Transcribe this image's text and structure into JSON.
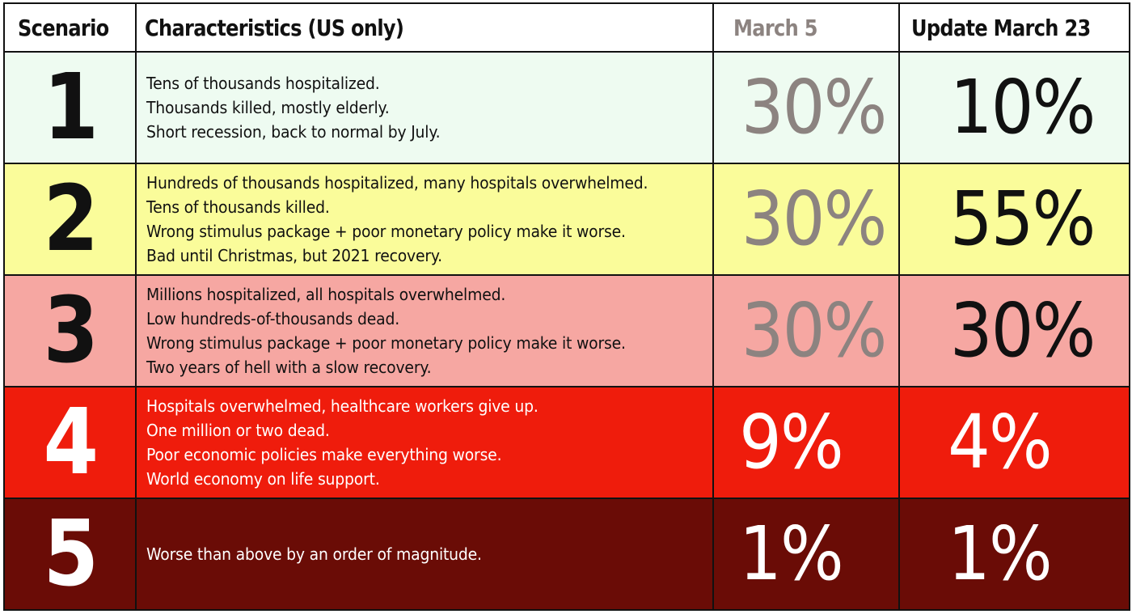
{
  "chart_data": {
    "type": "table",
    "columns": [
      "Scenario",
      "Characteristics (US only)",
      "March 5",
      "Update March 23"
    ],
    "rows": [
      {
        "scenario": "1",
        "characteristics": [
          "Tens of thousands hospitalized.",
          "Thousands killed, mostly elderly.",
          "Short recession, back to normal by July."
        ],
        "march5": "30%",
        "march23": "10%",
        "bg": "#eefbf1",
        "text_color": "#111111",
        "march5_color": "#8c8380"
      },
      {
        "scenario": "2",
        "characteristics": [
          "Hundreds of thousands hospitalized, many hospitals overwhelmed.",
          "Tens of thousands killed.",
          "Wrong stimulus package + poor monetary policy make it worse.",
          "Bad until Christmas, but 2021 recovery."
        ],
        "march5": "30%",
        "march23": "55%",
        "bg": "#fafc9a",
        "text_color": "#111111",
        "march5_color": "#8c8380"
      },
      {
        "scenario": "3",
        "characteristics": [
          "Millions hospitalized, all hospitals overwhelmed.",
          "Low hundreds-of-thousands dead.",
          "Wrong stimulus package + poor monetary policy make it worse.",
          "Two years of hell with a slow recovery."
        ],
        "march5": "30%",
        "march23": "30%",
        "bg": "#f6a7a2",
        "text_color": "#111111",
        "march5_color": "#8c8380"
      },
      {
        "scenario": "4",
        "characteristics": [
          "Hospitals overwhelmed, healthcare workers give up.",
          "One million or two dead.",
          "Poor economic policies make everything worse.",
          "World economy on life support."
        ],
        "march5": "9%",
        "march23": "4%",
        "bg": "#ef1c0c",
        "text_color": "#ffffff",
        "march5_color": "#ffffff"
      },
      {
        "scenario": "5",
        "characteristics": [
          "Worse than above by an order of magnitude."
        ],
        "march5": "1%",
        "march23": "1%",
        "bg": "#6a0c06",
        "text_color": "#ffffff",
        "march5_color": "#ffffff"
      }
    ],
    "header_colors": {
      "march5": "#8c8380",
      "default": "#111111"
    }
  }
}
